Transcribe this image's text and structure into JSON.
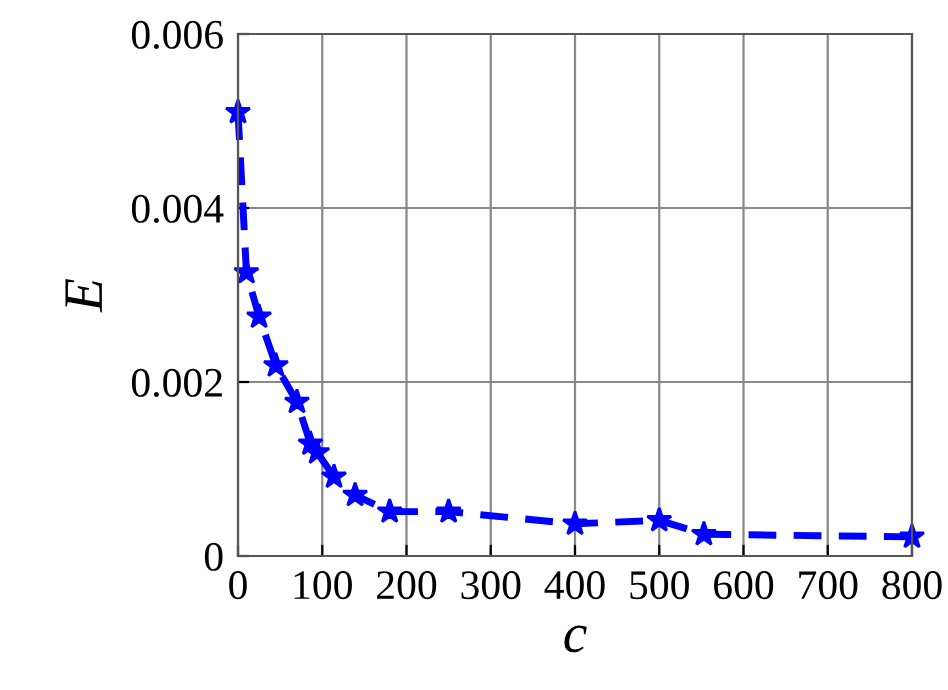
{
  "chart_data": {
    "type": "line",
    "xlabel": "c",
    "ylabel": "E",
    "x": [
      0,
      10,
      25,
      45,
      70,
      86,
      94,
      114,
      139,
      180,
      250,
      400,
      500,
      553,
      800
    ],
    "series": [
      {
        "color": "#0000ff",
        "values": [
          0.0051,
          0.00326,
          0.00275,
          0.00219,
          0.00177,
          0.00129,
          0.00119,
          0.00091,
          0.0007,
          0.00051,
          0.00051,
          0.00037,
          0.00041,
          0.00025,
          0.00022
        ]
      }
    ],
    "xlim": [
      0,
      800
    ],
    "ylim": [
      0,
      0.006
    ],
    "xticks": [
      0,
      100,
      200,
      300,
      400,
      500,
      600,
      700,
      800
    ],
    "yticks": [
      0,
      0.002,
      0.004,
      0.006
    ],
    "grid": true,
    "marker": "star",
    "line_style": "dashed"
  }
}
